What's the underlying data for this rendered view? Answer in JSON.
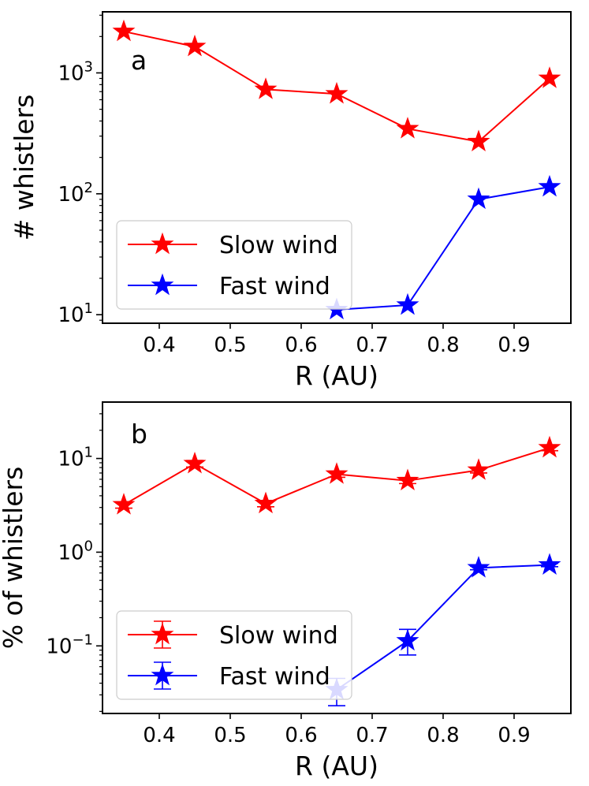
{
  "chart_data": [
    {
      "type": "line",
      "panel_label": "a",
      "xlabel": "R (AU)",
      "ylabel": "# whistlers",
      "yscale": "log",
      "xlim": [
        0.32,
        0.98
      ],
      "ylim": [
        8.5,
        3200
      ],
      "xticks": [
        0.4,
        0.5,
        0.6,
        0.7,
        0.8,
        0.9
      ],
      "xtick_labels": [
        "0.4",
        "0.5",
        "0.6",
        "0.7",
        "0.8",
        "0.9"
      ],
      "yticks": [
        {
          "base": "10",
          "exp": "1",
          "value": 10
        },
        {
          "base": "10",
          "exp": "2",
          "value": 100
        },
        {
          "base": "10",
          "exp": "3",
          "value": 1000
        }
      ],
      "legend_position": "lower-left",
      "series": [
        {
          "name": "Slow wind",
          "color": "#ff0000",
          "x": [
            0.35,
            0.45,
            0.55,
            0.65,
            0.75,
            0.85,
            0.95
          ],
          "y": [
            2200,
            1650,
            730,
            670,
            345,
            270,
            900
          ]
        },
        {
          "name": "Fast wind",
          "color": "#0000ff",
          "x": [
            0.65,
            0.75,
            0.85,
            0.95
          ],
          "y": [
            11,
            12,
            90,
            114
          ]
        }
      ]
    },
    {
      "type": "line",
      "panel_label": "b",
      "xlabel": "R (AU)",
      "ylabel": "% of whistlers",
      "yscale": "log",
      "xlim": [
        0.32,
        0.98
      ],
      "ylim": [
        0.019,
        40
      ],
      "xticks": [
        0.4,
        0.5,
        0.6,
        0.7,
        0.8,
        0.9
      ],
      "xtick_labels": [
        "0.4",
        "0.5",
        "0.6",
        "0.7",
        "0.8",
        "0.9"
      ],
      "yticks": [
        {
          "base": "10",
          "exp": "−1",
          "value": 0.1
        },
        {
          "base": "10",
          "exp": "0",
          "value": 1
        },
        {
          "base": "10",
          "exp": "1",
          "value": 10
        }
      ],
      "legend_position": "lower-left",
      "error_bars": true,
      "series": [
        {
          "name": "Slow wind",
          "color": "#ff0000",
          "x": [
            0.35,
            0.45,
            0.55,
            0.65,
            0.75,
            0.85,
            0.95
          ],
          "y": [
            3.2,
            8.8,
            3.3,
            6.8,
            5.8,
            7.5,
            13
          ],
          "yerr": [
            0.25,
            0.7,
            0.25,
            0.5,
            0.4,
            0.5,
            0.9
          ]
        },
        {
          "name": "Fast wind",
          "color": "#0000ff",
          "x": [
            0.65,
            0.75,
            0.85,
            0.95
          ],
          "y": [
            0.034,
            0.113,
            0.68,
            0.73
          ],
          "yerr_low": [
            0.011,
            0.033,
            0.03,
            0.03
          ],
          "yerr_high": [
            0.011,
            0.037,
            0.03,
            0.03
          ]
        }
      ]
    }
  ]
}
